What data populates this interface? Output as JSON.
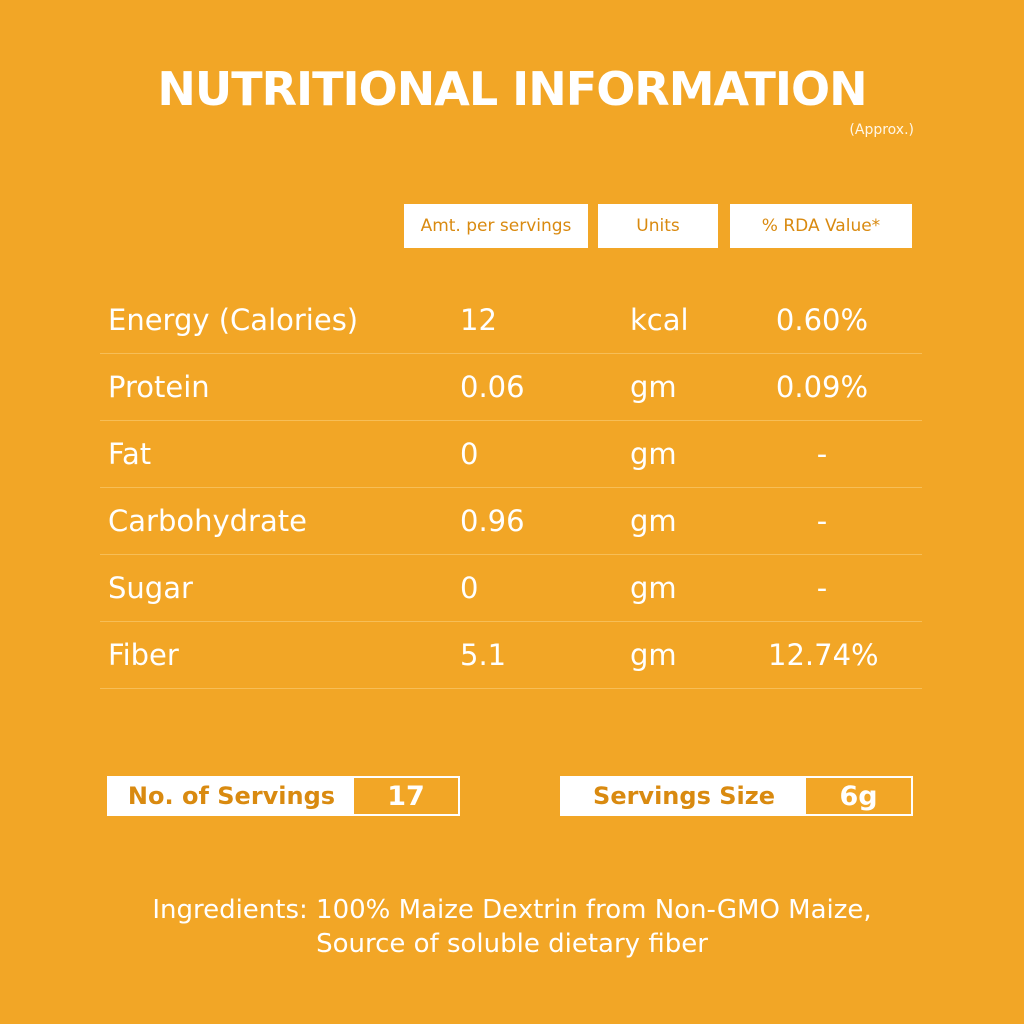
{
  "title": "NUTRITIONAL INFORMATION",
  "subtitle": "(Approx.)",
  "headers": {
    "amount": "Amt. per servings",
    "units": "Units",
    "rda": "% RDA Value*"
  },
  "rows": [
    {
      "name": "Energy (Calories)",
      "amount": "12",
      "unit": "kcal",
      "rda": "0.60%"
    },
    {
      "name": "Protein",
      "amount": "0.06",
      "unit": "gm",
      "rda": "0.09%"
    },
    {
      "name": "Fat",
      "amount": "0",
      "unit": "gm",
      "rda": "-"
    },
    {
      "name": "Carbohydrate",
      "amount": "0.96",
      "unit": "gm",
      "rda": "-"
    },
    {
      "name": "Sugar",
      "amount": "0",
      "unit": "gm",
      "rda": "-"
    },
    {
      "name": "Fiber",
      "amount": "5.1",
      "unit": "gm",
      "rda": "12.74%"
    }
  ],
  "servings": {
    "count_label": "No. of Servings",
    "count_value": "17",
    "size_label": "Servings Size",
    "size_value": "6g"
  },
  "ingredients": {
    "line1": "Ingredients: 100% Maize Dextrin from Non-GMO Maize,",
    "line2": "Source of soluble dietary fiber"
  },
  "colors": {
    "background": "#F2A626",
    "accent_text": "#D98A10",
    "text": "#FFFFFF"
  }
}
